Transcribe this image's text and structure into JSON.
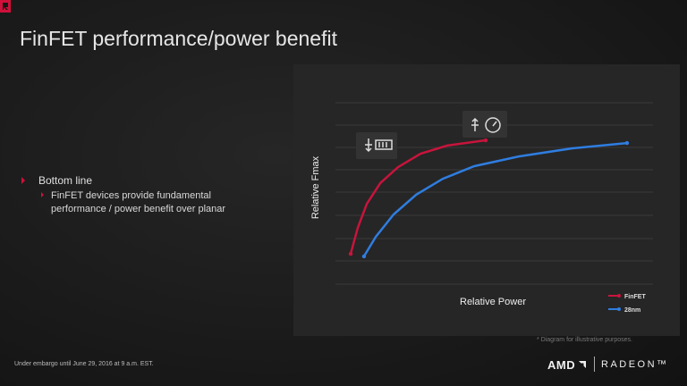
{
  "slide": {
    "title": "FinFET performance/power benefit",
    "bullets": [
      "Bottom line",
      "FinFET devices provide fundamental performance / power benefit over planar"
    ],
    "footnote": "* Diagram for illustrative purposes.",
    "embargo": "Under embargo until June 29, 2016 at 9 a.m. EST.",
    "brand": "AMD",
    "product": "RADEON™"
  },
  "chart_data": {
    "type": "line",
    "xlabel": "Relative Power",
    "ylabel": "Relative Fmax",
    "xlim": [
      0,
      100
    ],
    "ylim": [
      0,
      100
    ],
    "legend": "lower right",
    "series": [
      {
        "name": "FinFET",
        "color": "#c8143c",
        "x": [
          4.8,
          7.0,
          9.9,
          14.1,
          19.7,
          26.8,
          35.2,
          47.3
        ],
        "values": [
          16.7,
          31.0,
          44.3,
          55.7,
          64.5,
          71.9,
          76.4,
          79.3
        ]
      },
      {
        "name": "28nm",
        "color": "#2f7de0",
        "x": [
          9.0,
          12.7,
          18.3,
          25.4,
          33.8,
          43.7,
          57.7,
          74.6,
          91.8
        ],
        "values": [
          15.3,
          26.1,
          38.4,
          49.3,
          58.1,
          65.0,
          70.4,
          74.9,
          77.8
        ]
      }
    ]
  }
}
